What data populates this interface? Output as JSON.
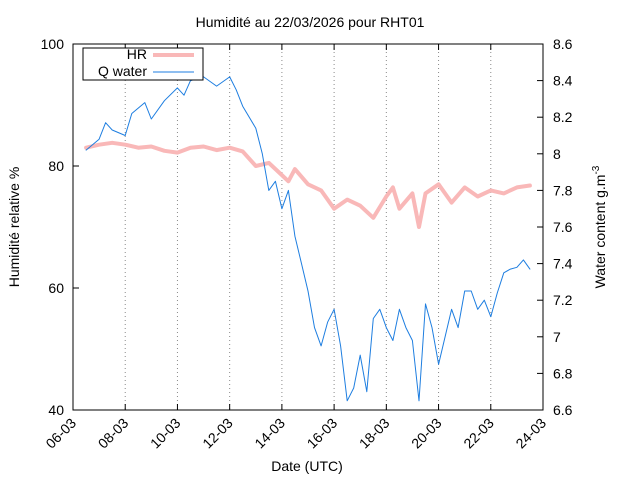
{
  "chart_data": {
    "type": "line",
    "title": "Humidité au 22/03/2026 pour RHT01",
    "xlabel": "Date (UTC)",
    "ylabel_left": "Humidité relative %",
    "ylabel_right": "Water content g.m",
    "ylabel_right_superscript": "-3",
    "x_range_days": [
      "2026-03-06",
      "2026-03-24"
    ],
    "x_ticks": [
      {
        "date": "2026-03-06",
        "label": "06-03"
      },
      {
        "date": "2026-03-08",
        "label": "08-03"
      },
      {
        "date": "2026-03-10",
        "label": "10-03"
      },
      {
        "date": "2026-03-12",
        "label": "12-03"
      },
      {
        "date": "2026-03-14",
        "label": "14-03"
      },
      {
        "date": "2026-03-16",
        "label": "16-03"
      },
      {
        "date": "2026-03-18",
        "label": "18-03"
      },
      {
        "date": "2026-03-20",
        "label": "20-03"
      },
      {
        "date": "2026-03-22",
        "label": "22-03"
      },
      {
        "date": "2026-03-24",
        "label": "24-03"
      }
    ],
    "y_left_range": [
      40,
      100
    ],
    "y_left_ticks": [
      "40",
      "60",
      "80",
      "100"
    ],
    "y_right_range": [
      6.6,
      8.6
    ],
    "y_right_ticks": [
      "6.6",
      "6.8",
      "7",
      "7.2",
      "7.4",
      "7.6",
      "7.8",
      "8",
      "8.2",
      "8.4",
      "8.6"
    ],
    "vertical_grid": "dotted at date ticks",
    "legend_position": "top-left",
    "series": [
      {
        "name": "HR",
        "axis": "left",
        "color": "#f9b8b8",
        "points": [
          [
            "2026-03-06 12:00",
            83.0
          ],
          [
            "2026-03-07 00:00",
            83.5
          ],
          [
            "2026-03-07 12:00",
            83.8
          ],
          [
            "2026-03-08 00:00",
            83.5
          ],
          [
            "2026-03-08 12:00",
            83.0
          ],
          [
            "2026-03-09 00:00",
            83.2
          ],
          [
            "2026-03-09 12:00",
            82.5
          ],
          [
            "2026-03-10 00:00",
            82.2
          ],
          [
            "2026-03-10 12:00",
            83.0
          ],
          [
            "2026-03-11 00:00",
            83.2
          ],
          [
            "2026-03-11 12:00",
            82.6
          ],
          [
            "2026-03-12 00:00",
            83.0
          ],
          [
            "2026-03-12 12:00",
            82.4
          ],
          [
            "2026-03-13 00:00",
            80.0
          ],
          [
            "2026-03-13 12:00",
            80.5
          ],
          [
            "2026-03-14 00:00",
            78.5
          ],
          [
            "2026-03-14 06:00",
            77.5
          ],
          [
            "2026-03-14 12:00",
            79.5
          ],
          [
            "2026-03-15 00:00",
            77.0
          ],
          [
            "2026-03-15 12:00",
            76.0
          ],
          [
            "2026-03-16 00:00",
            73.0
          ],
          [
            "2026-03-16 12:00",
            74.5
          ],
          [
            "2026-03-17 00:00",
            73.5
          ],
          [
            "2026-03-17 12:00",
            71.5
          ],
          [
            "2026-03-18 00:00",
            75.0
          ],
          [
            "2026-03-18 06:00",
            76.5
          ],
          [
            "2026-03-18 12:00",
            73.0
          ],
          [
            "2026-03-19 00:00",
            75.5
          ],
          [
            "2026-03-19 06:00",
            70.0
          ],
          [
            "2026-03-19 12:00",
            75.5
          ],
          [
            "2026-03-20 00:00",
            77.0
          ],
          [
            "2026-03-20 12:00",
            74.0
          ],
          [
            "2026-03-21 00:00",
            76.5
          ],
          [
            "2026-03-21 12:00",
            75.0
          ],
          [
            "2026-03-22 00:00",
            76.0
          ],
          [
            "2026-03-22 12:00",
            75.5
          ],
          [
            "2026-03-23 00:00",
            76.5
          ],
          [
            "2026-03-23 12:00",
            76.8
          ]
        ]
      },
      {
        "name": "Q water",
        "axis": "right",
        "color": "#1e7ee0",
        "points": [
          [
            "2026-03-06 12:00",
            8.02
          ],
          [
            "2026-03-07 00:00",
            8.08
          ],
          [
            "2026-03-07 06:00",
            8.17
          ],
          [
            "2026-03-07 12:00",
            8.13
          ],
          [
            "2026-03-08 00:00",
            8.1
          ],
          [
            "2026-03-08 06:00",
            8.22
          ],
          [
            "2026-03-08 18:00",
            8.28
          ],
          [
            "2026-03-09 00:00",
            8.19
          ],
          [
            "2026-03-09 12:00",
            8.29
          ],
          [
            "2026-03-10 00:00",
            8.36
          ],
          [
            "2026-03-10 06:00",
            8.32
          ],
          [
            "2026-03-10 12:00",
            8.4
          ],
          [
            "2026-03-11 00:00",
            8.42
          ],
          [
            "2026-03-11 12:00",
            8.37
          ],
          [
            "2026-03-12 00:00",
            8.42
          ],
          [
            "2026-03-12 06:00",
            8.35
          ],
          [
            "2026-03-12 12:00",
            8.26
          ],
          [
            "2026-03-13 00:00",
            8.14
          ],
          [
            "2026-03-13 06:00",
            8.0
          ],
          [
            "2026-03-13 12:00",
            7.8
          ],
          [
            "2026-03-13 18:00",
            7.85
          ],
          [
            "2026-03-14 00:00",
            7.7
          ],
          [
            "2026-03-14 06:00",
            7.8
          ],
          [
            "2026-03-14 12:00",
            7.55
          ],
          [
            "2026-03-14 18:00",
            7.4
          ],
          [
            "2026-03-15 00:00",
            7.25
          ],
          [
            "2026-03-15 06:00",
            7.05
          ],
          [
            "2026-03-15 12:00",
            6.95
          ],
          [
            "2026-03-15 18:00",
            7.08
          ],
          [
            "2026-03-16 00:00",
            7.15
          ],
          [
            "2026-03-16 06:00",
            6.95
          ],
          [
            "2026-03-16 12:00",
            6.65
          ],
          [
            "2026-03-16 18:00",
            6.72
          ],
          [
            "2026-03-17 00:00",
            6.9
          ],
          [
            "2026-03-17 06:00",
            6.7
          ],
          [
            "2026-03-17 12:00",
            7.1
          ],
          [
            "2026-03-17 18:00",
            7.15
          ],
          [
            "2026-03-18 00:00",
            7.05
          ],
          [
            "2026-03-18 06:00",
            6.98
          ],
          [
            "2026-03-18 12:00",
            7.15
          ],
          [
            "2026-03-18 18:00",
            7.05
          ],
          [
            "2026-03-19 00:00",
            6.98
          ],
          [
            "2026-03-19 06:00",
            6.65
          ],
          [
            "2026-03-19 12:00",
            7.18
          ],
          [
            "2026-03-19 18:00",
            7.05
          ],
          [
            "2026-03-20 00:00",
            6.85
          ],
          [
            "2026-03-20 06:00",
            7.0
          ],
          [
            "2026-03-20 12:00",
            7.15
          ],
          [
            "2026-03-20 18:00",
            7.05
          ],
          [
            "2026-03-21 00:00",
            7.25
          ],
          [
            "2026-03-21 06:00",
            7.25
          ],
          [
            "2026-03-21 12:00",
            7.15
          ],
          [
            "2026-03-21 18:00",
            7.2
          ],
          [
            "2026-03-22 00:00",
            7.11
          ],
          [
            "2026-03-22 06:00",
            7.24
          ],
          [
            "2026-03-22 12:00",
            7.35
          ],
          [
            "2026-03-22 18:00",
            7.37
          ],
          [
            "2026-03-23 00:00",
            7.38
          ],
          [
            "2026-03-23 06:00",
            7.42
          ],
          [
            "2026-03-23 12:00",
            7.37
          ]
        ]
      }
    ]
  }
}
